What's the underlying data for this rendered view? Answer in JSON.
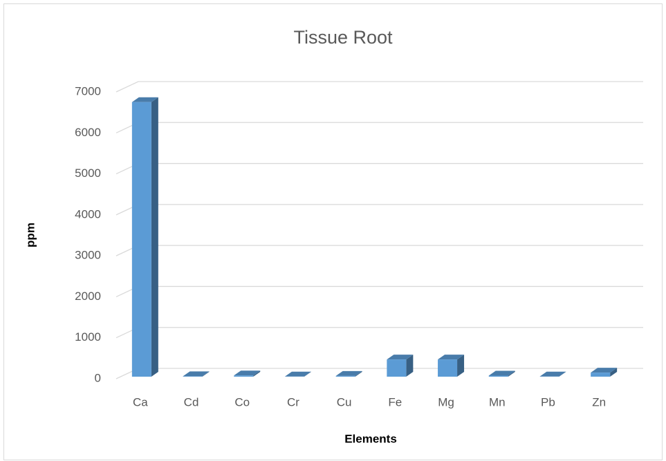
{
  "chart_data": {
    "type": "bar3d",
    "title": "Tissue Root",
    "x_label": "Elements",
    "y_label": "ppm",
    "categories": [
      "Ca",
      "Cd",
      "Co",
      "Cr",
      "Cu",
      "Fe",
      "Mg",
      "Mn",
      "Pb",
      "Zn"
    ],
    "values": [
      6700,
      10,
      30,
      5,
      20,
      420,
      420,
      25,
      5,
      100
    ],
    "color": "#5b9bd5",
    "ylim": [
      0,
      7000
    ],
    "yticks": [
      0,
      1000,
      2000,
      3000,
      4000,
      5000,
      6000,
      7000
    ],
    "grid": true
  }
}
